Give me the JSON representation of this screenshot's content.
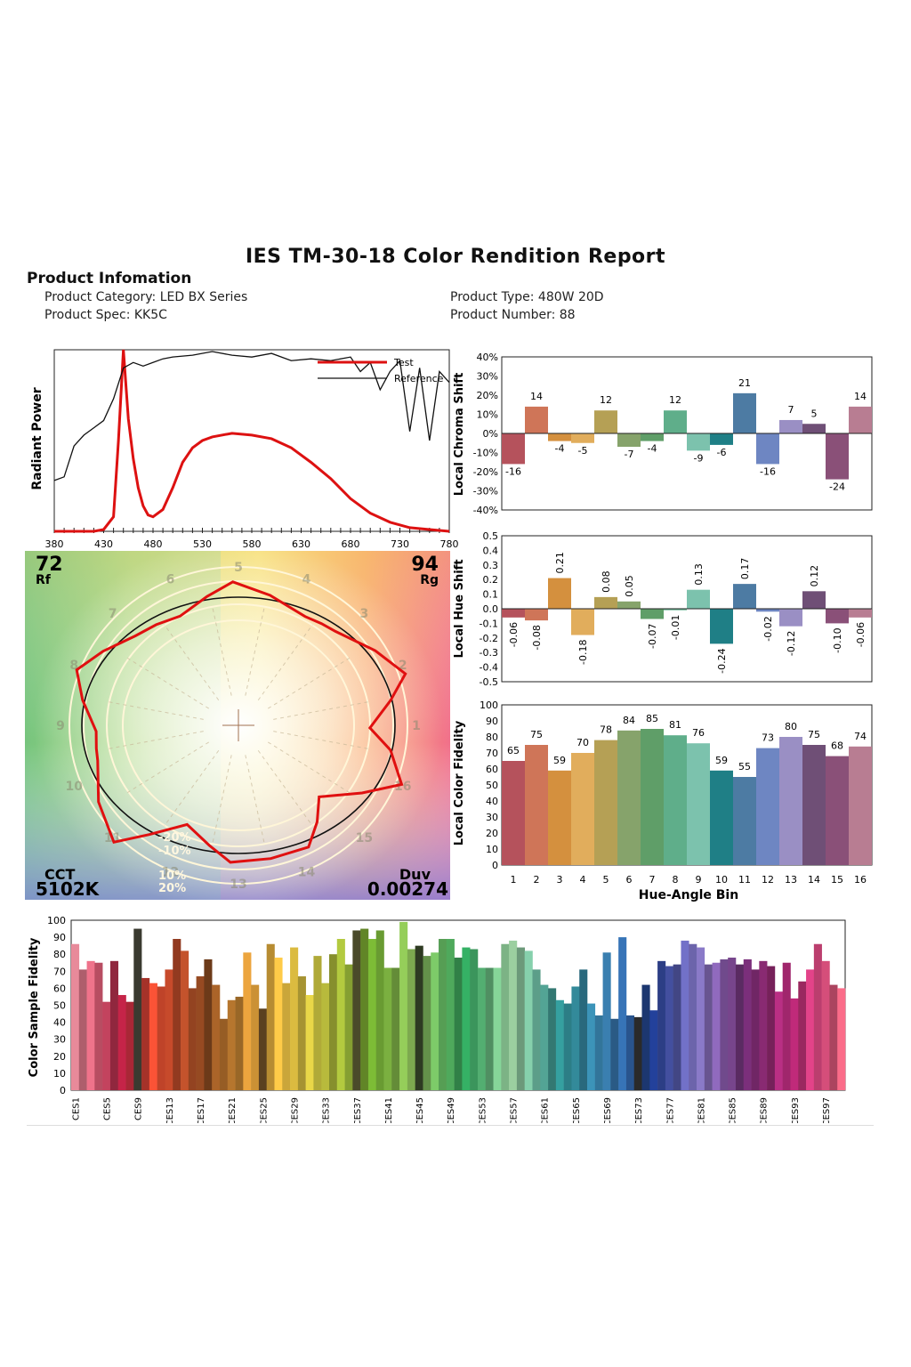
{
  "report": {
    "title": "IES TM-30-18 Color Rendition Report",
    "info_heading": "Product Infomation",
    "product_category": "Product Category: LED BX Series",
    "product_spec": "Product Spec: KK5C",
    "product_type": "Product Type: 480W  20D",
    "product_number": "Product Number: 88"
  },
  "chart_data": [
    {
      "type": "line",
      "ylabel": "Radiant Power",
      "x_ticks": [
        "380",
        "430",
        "480",
        "530",
        "580",
        "630",
        "680",
        "730",
        "780"
      ],
      "xlim": [
        380,
        780
      ],
      "legend": [
        "Test",
        "Reference"
      ],
      "legend_position": "top-right",
      "series": [
        {
          "name": "Test",
          "color": "#dd1111",
          "x": [
            380,
            400,
            420,
            430,
            440,
            445,
            450,
            455,
            460,
            465,
            470,
            475,
            480,
            490,
            500,
            510,
            520,
            530,
            540,
            560,
            580,
            600,
            620,
            640,
            660,
            680,
            700,
            720,
            740,
            760,
            780
          ],
          "values": [
            0,
            0,
            0,
            1,
            8,
            50,
            100,
            62,
            40,
            24,
            14,
            9,
            8,
            12,
            24,
            38,
            46,
            50,
            52,
            54,
            53,
            51,
            46,
            38,
            29,
            18,
            10,
            5,
            2,
            1,
            0
          ]
        },
        {
          "name": "Reference",
          "color": "#111111",
          "x": [
            380,
            390,
            400,
            410,
            420,
            430,
            440,
            450,
            460,
            470,
            480,
            490,
            500,
            520,
            540,
            560,
            580,
            600,
            620,
            640,
            660,
            680,
            690,
            700,
            710,
            720,
            730,
            740,
            750,
            760,
            770,
            780
          ],
          "values": [
            28,
            30,
            47,
            53,
            57,
            61,
            73,
            90,
            93,
            91,
            93,
            95,
            96,
            97,
            99,
            97,
            96,
            98,
            94,
            95,
            94,
            96,
            88,
            93,
            78,
            88,
            94,
            55,
            90,
            50,
            88,
            82
          ]
        }
      ]
    },
    {
      "type": "bar",
      "title": "Local Chroma Shift",
      "categories": [
        "1",
        "2",
        "3",
        "4",
        "5",
        "6",
        "7",
        "8",
        "9",
        "10",
        "11",
        "12",
        "13",
        "14",
        "15",
        "16"
      ],
      "values": [
        -16,
        14,
        -4,
        -5,
        12,
        -7,
        -4,
        12,
        -9,
        -6,
        21,
        -16,
        7,
        5,
        -24,
        14
      ],
      "value_labels": [
        "-16",
        "14",
        "-4",
        "-5",
        "12",
        "-7",
        "-4",
        "12",
        "-9",
        "-6",
        "21",
        "-16",
        "7",
        "5",
        "-24",
        "14"
      ],
      "y_ticks": [
        "40%",
        "30%",
        "20%",
        "10%",
        "0%",
        "-10%",
        "-20%",
        "-30%",
        "-40%"
      ],
      "ylim": [
        -40,
        40
      ]
    },
    {
      "type": "bar",
      "title": "Local Hue Shift",
      "categories": [
        "1",
        "2",
        "3",
        "4",
        "5",
        "6",
        "7",
        "8",
        "9",
        "10",
        "11",
        "12",
        "13",
        "14",
        "15",
        "16"
      ],
      "values": [
        -0.06,
        -0.08,
        0.21,
        -0.18,
        0.08,
        0.05,
        -0.07,
        -0.01,
        0.13,
        -0.24,
        0.17,
        -0.02,
        -0.12,
        0.12,
        -0.1,
        -0.06
      ],
      "value_labels": [
        "-0.06",
        "-0.08",
        "0.21",
        "-0.18",
        "0.08",
        "0.05",
        "-0.07",
        "-0.01",
        "0.13",
        "-0.24",
        "0.17",
        "-0.02",
        "-0.12",
        "0.12",
        "-0.10",
        "-0.06"
      ],
      "y_ticks": [
        "0.5",
        "0.4",
        "0.3",
        "0.2",
        "0.1",
        "0.0",
        "-0.1",
        "-0.2",
        "-0.3",
        "-0.4",
        "-0.5"
      ],
      "ylim": [
        -0.5,
        0.5
      ]
    },
    {
      "type": "bar",
      "title": "Local Color Fidelity",
      "xlabel": "Hue-Angle Bin",
      "categories": [
        "1",
        "2",
        "3",
        "4",
        "5",
        "6",
        "7",
        "8",
        "9",
        "10",
        "11",
        "12",
        "13",
        "14",
        "15",
        "16"
      ],
      "values": [
        65,
        75,
        59,
        70,
        78,
        84,
        85,
        81,
        76,
        59,
        55,
        73,
        80,
        75,
        68,
        74
      ],
      "value_labels": [
        "65",
        "75",
        "59",
        "70",
        "78",
        "84",
        "85",
        "81",
        "76",
        "59",
        "55",
        "73",
        "80",
        "75",
        "68",
        "74"
      ],
      "y_ticks": [
        "100",
        "90",
        "80",
        "70",
        "60",
        "50",
        "40",
        "30",
        "20",
        "10",
        "0"
      ],
      "ylim": [
        0,
        100
      ]
    },
    {
      "type": "bar",
      "title": "Color Sample Fidelity",
      "categories": [
        "CES1",
        "CES2",
        "CES3",
        "CES4",
        "CES5",
        "CES6",
        "CES7",
        "CES8",
        "CES9",
        "CES10",
        "CES11",
        "CES12",
        "CES13",
        "CES14",
        "CES15",
        "CES16",
        "CES17",
        "CES18",
        "CES19",
        "CES20",
        "CES21",
        "CES22",
        "CES23",
        "CES24",
        "CES25",
        "CES26",
        "CES27",
        "CES28",
        "CES29",
        "CES30",
        "CES31",
        "CES32",
        "CES33",
        "CES34",
        "CES35",
        "CES36",
        "CES37",
        "CES38",
        "CES39",
        "CES40",
        "CES41",
        "CES42",
        "CES43",
        "CES44",
        "CES45",
        "CES46",
        "CES47",
        "CES48",
        "CES49",
        "CES50",
        "CES51",
        "CES52",
        "CES53",
        "CES54",
        "CES55",
        "CES56",
        "CES57",
        "CES58",
        "CES59",
        "CES60",
        "CES61",
        "CES62",
        "CES63",
        "CES64",
        "CES65",
        "CES66",
        "CES67",
        "CES68",
        "CES69",
        "CES70",
        "CES71",
        "CES72",
        "CES73",
        "CES74",
        "CES75",
        "CES76",
        "CES77",
        "CES78",
        "CES79",
        "CES80",
        "CES81",
        "CES82",
        "CES83",
        "CES84",
        "CES85",
        "CES86",
        "CES87",
        "CES88",
        "CES89",
        "CES90",
        "CES91",
        "CES92",
        "CES93",
        "CES94",
        "CES95",
        "CES96",
        "CES97",
        "CES98",
        "CES99"
      ],
      "values": [
        86,
        71,
        76,
        75,
        52,
        76,
        56,
        52,
        95,
        66,
        63,
        61,
        71,
        89,
        82,
        60,
        67,
        77,
        62,
        42,
        53,
        55,
        81,
        62,
        48,
        86,
        78,
        63,
        84,
        67,
        56,
        79,
        63,
        80,
        89,
        74,
        94,
        95,
        89,
        94,
        72,
        72,
        99,
        83,
        85,
        79,
        81,
        89,
        89,
        78,
        84,
        83,
        72,
        72,
        72,
        86,
        88,
        84,
        82,
        71,
        62,
        60,
        53,
        51,
        61,
        71,
        51,
        44,
        81,
        42,
        90,
        44,
        43,
        62,
        47,
        76,
        73,
        74,
        88,
        86,
        84,
        74,
        75,
        77,
        78,
        74,
        77,
        71,
        76,
        73,
        58,
        75,
        54,
        64,
        71,
        86,
        76,
        62,
        60
      ],
      "x_tick_labels": [
        "CES1",
        "CES5",
        "CES9",
        "CES13",
        "CES17",
        "CES21",
        "CES25",
        "CES29",
        "CES33",
        "CES37",
        "CES41",
        "CES45",
        "CES49",
        "CES53",
        "CES57",
        "CES61",
        "CES65",
        "CES69",
        "CES73",
        "CES77",
        "CES81",
        "CES85",
        "CES89",
        "CES93",
        "CES97"
      ],
      "y_ticks": [
        "100",
        "90",
        "80",
        "70",
        "60",
        "50",
        "40",
        "30",
        "20",
        "10",
        "0"
      ],
      "ylim": [
        0,
        100
      ]
    }
  ],
  "vector_graphic": {
    "rf_value": "72",
    "rf_label": "Rf",
    "rg_value": "94",
    "rg_label": "Rg",
    "cct_label": "CCT",
    "cct_value": "5102K",
    "duv_label": "Duv",
    "duv_value": "0.00274",
    "ring_labels": [
      "-20%",
      "-10%",
      "10%",
      "20%"
    ],
    "bin_numbers": [
      "1",
      "2",
      "3",
      "4",
      "5",
      "6",
      "7",
      "8",
      "9",
      "10",
      "11",
      "12",
      "13",
      "14",
      "15",
      "16"
    ]
  }
}
